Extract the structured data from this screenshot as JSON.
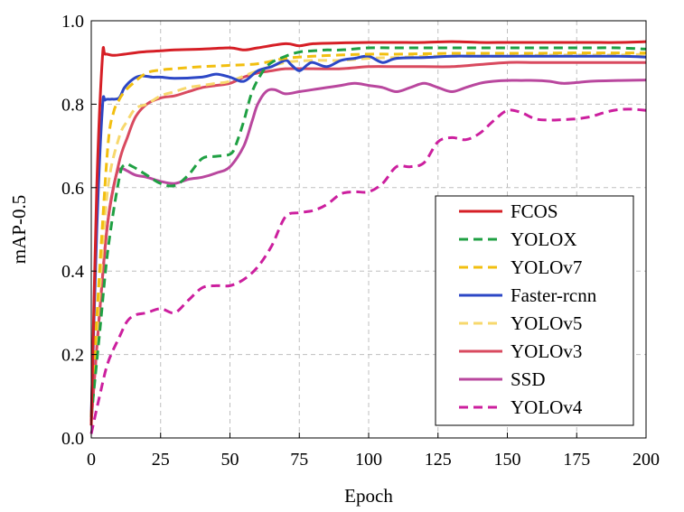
{
  "chart_data": {
    "type": "line",
    "title": "",
    "xlabel": "Epoch",
    "ylabel": "mAP-0.5",
    "xlim": [
      0,
      200
    ],
    "ylim": [
      0,
      1.0
    ],
    "xticks": [
      "0",
      "25",
      "50",
      "75",
      "100",
      "125",
      "150",
      "175",
      "200"
    ],
    "yticks": [
      "0.0",
      "0.2",
      "0.4",
      "0.6",
      "0.8",
      "1.0"
    ],
    "grid": true,
    "legend_position": "bottom-right",
    "series": [
      {
        "name": "FCOS",
        "color": "#d61f26",
        "dash": "solid",
        "x": [
          0,
          2,
          4,
          5,
          8,
          12,
          18,
          25,
          30,
          40,
          50,
          55,
          60,
          70,
          75,
          80,
          90,
          100,
          110,
          120,
          130,
          140,
          150,
          160,
          170,
          180,
          190,
          200
        ],
        "y": [
          0.03,
          0.6,
          0.91,
          0.92,
          0.917,
          0.92,
          0.925,
          0.928,
          0.93,
          0.932,
          0.935,
          0.93,
          0.935,
          0.945,
          0.94,
          0.945,
          0.947,
          0.948,
          0.948,
          0.948,
          0.95,
          0.948,
          0.948,
          0.948,
          0.948,
          0.948,
          0.948,
          0.95
        ]
      },
      {
        "name": "YOLOX",
        "color": "#1fa043",
        "dash": "dashed",
        "x": [
          0,
          3,
          6,
          10,
          12,
          15,
          20,
          25,
          30,
          35,
          40,
          45,
          50,
          52,
          55,
          58,
          62,
          65,
          70,
          75,
          80,
          85,
          90,
          100,
          110,
          120,
          130,
          140,
          150,
          160,
          170,
          180,
          190,
          200
        ],
        "y": [
          0.05,
          0.25,
          0.45,
          0.62,
          0.655,
          0.65,
          0.63,
          0.61,
          0.605,
          0.63,
          0.67,
          0.675,
          0.68,
          0.7,
          0.76,
          0.83,
          0.88,
          0.9,
          0.915,
          0.925,
          0.928,
          0.93,
          0.93,
          0.935,
          0.935,
          0.935,
          0.935,
          0.935,
          0.935,
          0.935,
          0.935,
          0.935,
          0.935,
          0.932
        ]
      },
      {
        "name": "YOLOv7",
        "color": "#f2bf10",
        "dash": "dashed",
        "x": [
          0,
          3,
          6,
          8,
          10,
          12,
          15,
          20,
          25,
          30,
          40,
          50,
          60,
          70,
          80,
          90,
          100,
          110,
          120,
          130,
          140,
          150,
          160,
          170,
          180,
          190,
          200
        ],
        "y": [
          0.05,
          0.4,
          0.7,
          0.78,
          0.81,
          0.83,
          0.85,
          0.875,
          0.882,
          0.885,
          0.89,
          0.893,
          0.897,
          0.91,
          0.915,
          0.918,
          0.92,
          0.92,
          0.921,
          0.922,
          0.922,
          0.922,
          0.922,
          0.923,
          0.923,
          0.923,
          0.923
        ]
      },
      {
        "name": "Faster-rcnn",
        "color": "#2c47c6",
        "dash": "solid",
        "x": [
          0,
          2,
          4,
          5,
          7,
          10,
          12,
          15,
          18,
          22,
          25,
          30,
          40,
          45,
          50,
          55,
          60,
          65,
          70,
          72,
          75,
          78,
          80,
          85,
          90,
          95,
          100,
          105,
          110,
          120,
          130,
          140,
          150,
          160,
          170,
          180,
          190,
          200
        ],
        "y": [
          0.05,
          0.5,
          0.79,
          0.81,
          0.812,
          0.815,
          0.84,
          0.86,
          0.868,
          0.865,
          0.865,
          0.862,
          0.865,
          0.872,
          0.865,
          0.855,
          0.88,
          0.89,
          0.905,
          0.895,
          0.88,
          0.895,
          0.9,
          0.89,
          0.905,
          0.91,
          0.915,
          0.9,
          0.91,
          0.912,
          0.915,
          0.915,
          0.915,
          0.915,
          0.915,
          0.915,
          0.915,
          0.913
        ]
      },
      {
        "name": "YOLOv5",
        "color": "#f7d86d",
        "dash": "dashed",
        "x": [
          0,
          3,
          6,
          10,
          13,
          16,
          20,
          25,
          30,
          35,
          40,
          45,
          50,
          60,
          70,
          80,
          90,
          100,
          110,
          120,
          130,
          140,
          150,
          160,
          170,
          180,
          190,
          200
        ],
        "y": [
          0.05,
          0.35,
          0.6,
          0.72,
          0.76,
          0.79,
          0.8,
          0.82,
          0.83,
          0.84,
          0.845,
          0.85,
          0.855,
          0.88,
          0.9,
          0.905,
          0.905,
          0.91,
          0.912,
          0.915,
          0.915,
          0.915,
          0.915,
          0.917,
          0.918,
          0.918,
          0.918,
          0.92
        ]
      },
      {
        "name": "YOLOv3",
        "color": "#d94a5f",
        "dash": "solid",
        "x": [
          0,
          3,
          6,
          10,
          13,
          16,
          20,
          25,
          30,
          35,
          40,
          45,
          50,
          55,
          60,
          65,
          70,
          80,
          90,
          100,
          110,
          120,
          130,
          140,
          150,
          160,
          170,
          180,
          190,
          200
        ],
        "y": [
          0.04,
          0.3,
          0.52,
          0.66,
          0.72,
          0.77,
          0.8,
          0.815,
          0.82,
          0.83,
          0.84,
          0.845,
          0.85,
          0.865,
          0.875,
          0.88,
          0.885,
          0.885,
          0.885,
          0.89,
          0.89,
          0.89,
          0.89,
          0.895,
          0.9,
          0.9,
          0.9,
          0.9,
          0.9,
          0.9
        ]
      },
      {
        "name": "SSD",
        "color": "#b9479e",
        "dash": "solid",
        "x": [
          0,
          3,
          6,
          9,
          11,
          13,
          16,
          20,
          25,
          30,
          35,
          40,
          45,
          50,
          55,
          58,
          60,
          63,
          66,
          70,
          75,
          80,
          85,
          90,
          95,
          100,
          105,
          110,
          115,
          120,
          125,
          130,
          135,
          140,
          145,
          150,
          155,
          160,
          165,
          170,
          175,
          180,
          190,
          200
        ],
        "y": [
          0.04,
          0.3,
          0.52,
          0.63,
          0.645,
          0.64,
          0.63,
          0.625,
          0.615,
          0.61,
          0.62,
          0.625,
          0.635,
          0.65,
          0.7,
          0.76,
          0.8,
          0.83,
          0.835,
          0.825,
          0.83,
          0.835,
          0.84,
          0.845,
          0.85,
          0.845,
          0.84,
          0.83,
          0.84,
          0.85,
          0.84,
          0.83,
          0.84,
          0.85,
          0.855,
          0.857,
          0.857,
          0.857,
          0.855,
          0.85,
          0.852,
          0.855,
          0.857,
          0.858
        ]
      },
      {
        "name": "YOLOv4",
        "color": "#cc1f9e",
        "dash": "dashed",
        "x": [
          0,
          3,
          6,
          10,
          13,
          16,
          20,
          25,
          30,
          35,
          40,
          45,
          50,
          55,
          60,
          65,
          70,
          75,
          80,
          85,
          90,
          95,
          100,
          105,
          110,
          115,
          120,
          125,
          130,
          135,
          140,
          145,
          150,
          155,
          160,
          165,
          170,
          175,
          180,
          185,
          190,
          195,
          200
        ],
        "y": [
          0.01,
          0.1,
          0.18,
          0.24,
          0.28,
          0.295,
          0.3,
          0.31,
          0.3,
          0.33,
          0.36,
          0.365,
          0.365,
          0.38,
          0.41,
          0.46,
          0.53,
          0.54,
          0.545,
          0.56,
          0.585,
          0.59,
          0.59,
          0.61,
          0.65,
          0.65,
          0.66,
          0.71,
          0.72,
          0.715,
          0.73,
          0.76,
          0.785,
          0.78,
          0.765,
          0.762,
          0.763,
          0.765,
          0.77,
          0.78,
          0.787,
          0.788,
          0.785
        ]
      }
    ]
  }
}
